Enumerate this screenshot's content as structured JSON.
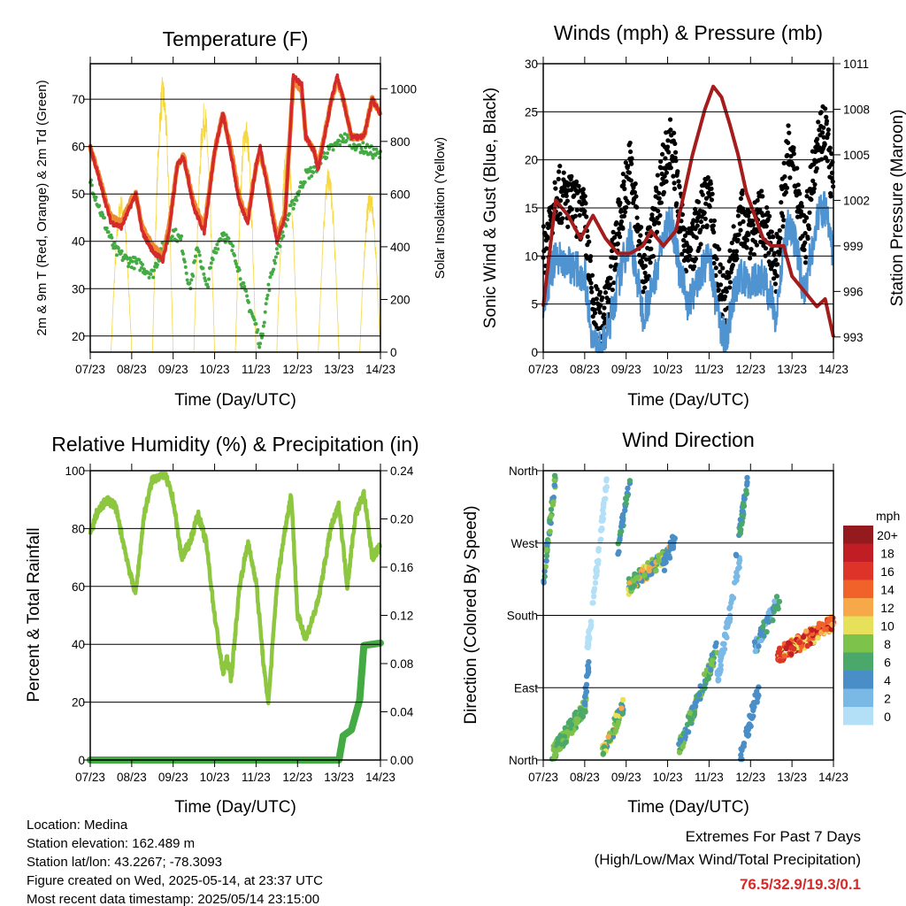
{
  "chart_data": [
    {
      "type": "line",
      "title": "Temperature (F)",
      "xlabel": "Time (Day/UTC)",
      "ylabel": "2m & 9m T (Red, Orange) & 2m Td (Green)",
      "ylabel_right": "Solar Insolation (Yellow)",
      "xticks": [
        "07/23",
        "08/23",
        "09/23",
        "10/23",
        "11/23",
        "12/23",
        "13/23",
        "14/23"
      ],
      "xlim": [
        0,
        7
      ],
      "ylim": [
        16.6,
        77.5
      ],
      "yticks": [
        20,
        30,
        40,
        50,
        60,
        70
      ],
      "ylim_right": [
        0,
        1095
      ],
      "yticks_right": [
        0,
        200,
        400,
        600,
        800,
        1000
      ],
      "series": [
        {
          "name": "2m T",
          "color": "#d42a2a",
          "x": [
            0,
            0.25,
            0.5,
            0.75,
            1.0,
            1.1,
            1.25,
            1.5,
            1.75,
            1.9,
            2.1,
            2.25,
            2.5,
            2.75,
            3.0,
            3.2,
            3.4,
            3.6,
            3.8,
            4.0,
            4.1,
            4.3,
            4.5,
            4.7,
            4.8,
            4.9,
            5.1,
            5.2,
            5.4,
            5.5,
            5.8,
            5.95,
            6.1,
            6.3,
            6.6,
            6.8,
            7.0
          ],
          "y": [
            60,
            52,
            44,
            43,
            48,
            50,
            42,
            38,
            36,
            42,
            56,
            58,
            47,
            42,
            59,
            67,
            58,
            48,
            44,
            56,
            60,
            50,
            40,
            45,
            60,
            75,
            73,
            62,
            59,
            55,
            69,
            75,
            70,
            62,
            62,
            70,
            67
          ]
        },
        {
          "name": "9m T",
          "color": "#f08a30",
          "x": [
            0,
            0.25,
            0.5,
            0.75,
            1.0,
            1.1,
            1.25,
            1.5,
            1.75,
            1.9,
            2.1,
            2.25,
            2.5,
            2.75,
            3.0,
            3.2,
            3.4,
            3.6,
            3.8,
            4.0,
            4.1,
            4.3,
            4.5,
            4.7,
            4.8,
            4.9,
            5.1,
            5.2,
            5.4,
            5.5,
            5.8,
            5.95,
            6.1,
            6.3,
            6.6,
            6.8,
            7.0
          ],
          "y": [
            60,
            52.5,
            45,
            44,
            49,
            50,
            43,
            39,
            37,
            43,
            56,
            58,
            48,
            43,
            59,
            67,
            59,
            49,
            45,
            56,
            59,
            51,
            41,
            46,
            60,
            74,
            72,
            62,
            59,
            56,
            69,
            74,
            70,
            62,
            62,
            70,
            67
          ]
        },
        {
          "name": "2m Td",
          "color": "#44aa44",
          "x": [
            0,
            0.3,
            0.6,
            0.9,
            1.2,
            1.5,
            1.7,
            2.0,
            2.2,
            2.4,
            2.6,
            2.8,
            3.0,
            3.2,
            3.5,
            3.7,
            4.0,
            4.1,
            4.3,
            4.5,
            4.8,
            5.0,
            5.2,
            5.4,
            5.6,
            5.9,
            6.1,
            6.5,
            7.0
          ],
          "y": [
            53,
            45,
            38,
            36,
            35,
            33,
            38,
            42,
            40,
            30,
            39,
            30,
            38,
            42,
            37,
            30,
            22,
            18,
            30,
            38,
            46,
            50,
            54,
            55,
            58,
            60,
            62,
            60,
            58
          ]
        }
      ],
      "solar_daily_peak": [
        600,
        1050,
        950,
        900,
        800,
        700,
        620
      ]
    },
    {
      "type": "line",
      "title": "Winds (mph) & Pressure (mb)",
      "xlabel": "Time (Day/UTC)",
      "ylabel": "Sonic Wind & Gust (Blue, Black)",
      "ylabel_right": "Station Pressure (Maroon)",
      "xticks": [
        "07/23",
        "08/23",
        "09/23",
        "10/23",
        "11/23",
        "12/23",
        "13/23",
        "14/23"
      ],
      "xlim": [
        0,
        7
      ],
      "ylim": [
        0,
        30
      ],
      "yticks": [
        0,
        5,
        10,
        15,
        20,
        25,
        30
      ],
      "ylim_right": [
        992,
        1011
      ],
      "yticks_right": [
        993,
        996,
        999,
        1002,
        1005,
        1008,
        1011
      ],
      "series": [
        {
          "name": "Sonic Wind",
          "color": "#4f93d0",
          "x": [
            0,
            0.3,
            0.7,
            1.0,
            1.2,
            1.4,
            1.6,
            1.9,
            2.1,
            2.4,
            2.6,
            2.9,
            3.1,
            3.3,
            3.5,
            3.8,
            4.0,
            4.2,
            4.4,
            4.6,
            4.8,
            5.0,
            5.3,
            5.6,
            5.9,
            6.1,
            6.3,
            6.6,
            6.8,
            7.0
          ],
          "y": [
            5,
            10,
            9,
            8,
            1,
            0,
            3,
            9,
            12,
            4,
            6,
            12,
            14,
            8,
            5,
            8,
            10,
            4,
            1,
            6,
            8,
            7,
            8,
            4,
            13,
            11,
            6,
            14,
            15,
            10
          ]
        },
        {
          "name": "Station Pressure",
          "color": "#a51c1c",
          "x": [
            0,
            0.3,
            0.6,
            0.9,
            1.2,
            1.5,
            1.8,
            2.1,
            2.4,
            2.6,
            2.9,
            3.2,
            3.6,
            3.9,
            4.1,
            4.3,
            4.5,
            4.7,
            4.9,
            5.1,
            5.3,
            5.5,
            5.8,
            6.0,
            6.3,
            6.6,
            6.8,
            7.0
          ],
          "y": [
            995,
            1002,
            1001,
            999.5,
            1001,
            999.5,
            998.5,
            998.5,
            999,
            1000,
            999,
            1000,
            1005,
            1008,
            1009.5,
            1008.8,
            1007,
            1005,
            1002.5,
            1001,
            999.5,
            999,
            999,
            997,
            996,
            995,
            995.5,
            993
          ]
        }
      ],
      "gust_factor": 1.35
    },
    {
      "type": "line",
      "title": "Relative Humidity (%) & Precipitation (in)",
      "xlabel": "Time (Day/UTC)",
      "ylabel": "Percent & Total Rainfall",
      "xticks": [
        "07/23",
        "08/23",
        "09/23",
        "10/23",
        "11/23",
        "12/23",
        "13/23",
        "14/23"
      ],
      "xlim": [
        0,
        7
      ],
      "ylim": [
        0,
        100
      ],
      "yticks": [
        0,
        20,
        40,
        60,
        80,
        100
      ],
      "ylim_right": [
        0,
        0.24
      ],
      "yticks_right": [
        "0.00",
        "0.04",
        "0.08",
        "0.12",
        "0.16",
        "0.20",
        "0.24"
      ],
      "series": [
        {
          "name": "Relative Humidity",
          "color": "#8dc63f",
          "x": [
            0,
            0.15,
            0.4,
            0.6,
            0.8,
            1.0,
            1.1,
            1.3,
            1.5,
            1.8,
            2.0,
            2.2,
            2.4,
            2.6,
            2.8,
            3.0,
            3.2,
            3.3,
            3.4,
            3.6,
            3.8,
            4.0,
            4.2,
            4.3,
            4.5,
            4.7,
            4.85,
            5.0,
            5.2,
            5.5,
            5.8,
            6.0,
            6.2,
            6.4,
            6.6,
            6.8,
            7.0
          ],
          "y": [
            78,
            85,
            90,
            88,
            75,
            62,
            58,
            85,
            97,
            99,
            90,
            70,
            75,
            85,
            75,
            50,
            30,
            35,
            28,
            60,
            75,
            62,
            30,
            20,
            60,
            80,
            92,
            50,
            42,
            55,
            80,
            88,
            60,
            85,
            92,
            70,
            74
          ]
        },
        {
          "name": "Total Precipitation",
          "color": "#44aa44",
          "x": [
            0,
            6.0,
            6.1,
            6.3,
            6.5,
            6.6,
            7.0
          ],
          "y": [
            0,
            0,
            0.02,
            0.025,
            0.05,
            0.095,
            0.097
          ]
        }
      ]
    },
    {
      "type": "scatter",
      "title": "Wind Direction",
      "xlabel": "Time (Day/UTC)",
      "ylabel": "Direction (Colored By Speed)",
      "xticks": [
        "07/23",
        "08/23",
        "09/23",
        "10/23",
        "11/23",
        "12/23",
        "13/23",
        "14/23"
      ],
      "xlim": [
        0,
        7
      ],
      "yticks": [
        {
          "v": 0,
          "label": "North"
        },
        {
          "v": 90,
          "label": "East"
        },
        {
          "v": 180,
          "label": "South"
        },
        {
          "v": 270,
          "label": "West"
        },
        {
          "v": 360,
          "label": "North"
        }
      ],
      "legend": {
        "title": "mph",
        "labels": [
          "20+",
          "18",
          "16",
          "14",
          "12",
          "10",
          "8",
          "6",
          "4",
          "2",
          "0"
        ],
        "colors": [
          "#951a1d",
          "#c01d25",
          "#dd3328",
          "#f0622a",
          "#f7a848",
          "#e6e05a",
          "#7dc24a",
          "#4aa86a",
          "#4a8ec8",
          "#7ab8e6",
          "#b3e0f7"
        ]
      },
      "clusters": [
        {
          "d": [
            0,
            0.3
          ],
          "deg": [
            220,
            355
          ],
          "spd": [
            4,
            9
          ],
          "n": 40
        },
        {
          "d": [
            0.2,
            1.05
          ],
          "deg": [
            5,
            70
          ],
          "spd": [
            6,
            10
          ],
          "n": 120
        },
        {
          "d": [
            1.0,
            1.1
          ],
          "deg": [
            75,
            120
          ],
          "spd": [
            4,
            6
          ],
          "n": 15
        },
        {
          "d": [
            1.05,
            1.55
          ],
          "deg": [
            130,
            355
          ],
          "spd": [
            0,
            2
          ],
          "n": 70
        },
        {
          "d": [
            1.4,
            1.95
          ],
          "deg": [
            5,
            70
          ],
          "spd": [
            4,
            13
          ],
          "n": 60
        },
        {
          "d": [
            1.8,
            2.1
          ],
          "deg": [
            260,
            355
          ],
          "spd": [
            4,
            7
          ],
          "n": 30
        },
        {
          "d": [
            2.05,
            3.05
          ],
          "deg": [
            215,
            260
          ],
          "spd": [
            4,
            14
          ],
          "n": 120
        },
        {
          "d": [
            2.9,
            3.2
          ],
          "deg": [
            240,
            280
          ],
          "spd": [
            4,
            6
          ],
          "n": 25
        },
        {
          "d": [
            3.25,
            4.2
          ],
          "deg": [
            10,
            140
          ],
          "spd": [
            4,
            10
          ],
          "n": 110
        },
        {
          "d": [
            4.2,
            4.75
          ],
          "deg": [
            100,
            250
          ],
          "spd": [
            2,
            4
          ],
          "n": 60
        },
        {
          "d": [
            4.6,
            4.95
          ],
          "deg": [
            240,
            355
          ],
          "spd": [
            4,
            8
          ],
          "n": 35
        },
        {
          "d": [
            4.75,
            5.2
          ],
          "deg": [
            0,
            90
          ],
          "spd": [
            4,
            6
          ],
          "n": 40
        },
        {
          "d": [
            5.1,
            5.7
          ],
          "deg": [
            140,
            200
          ],
          "spd": [
            2,
            8
          ],
          "n": 60
        },
        {
          "d": [
            5.65,
            7.0
          ],
          "deg": [
            130,
            170
          ],
          "spd": [
            10,
            20
          ],
          "n": 170
        }
      ]
    }
  ],
  "footer": {
    "lines": [
      "Location: Medina",
      "Station elevation: 162.489 m",
      "Station lat/lon: 43.2267; -78.3093",
      "Figure created on Wed, 2025-05-14, at 23:37 UTC",
      "Most recent data timestamp: 2025/05/14 23:15:00"
    ]
  },
  "extremes": {
    "title": "Extremes For Past 7 Days",
    "subtitle": "(High/Low/Max Wind/Total Precipitation)",
    "values": "76.5/32.9/19.3/0.1",
    "color": "#d42a2a"
  }
}
